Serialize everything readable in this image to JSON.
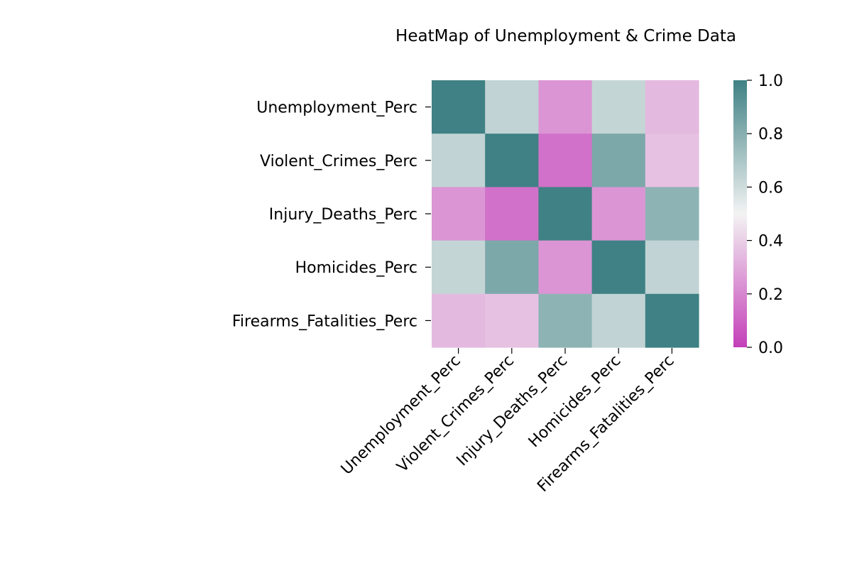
{
  "chart_data": {
    "type": "heatmap",
    "title": "HeatMap of Unemployment & Crime Data",
    "rows": [
      "Unemployment_Perc",
      "Violent_Crimes_Perc",
      "Injury_Deaths_Perc",
      "Homicides_Perc",
      "Firearms_Fatalities_Perc"
    ],
    "columns": [
      "Unemployment_Perc",
      "Violent_Crimes_Perc",
      "Injury_Deaths_Perc",
      "Homicides_Perc",
      "Firearms_Fatalities_Perc"
    ],
    "values": [
      [
        1.0,
        0.64,
        0.24,
        0.63,
        0.34
      ],
      [
        0.64,
        1.0,
        0.14,
        0.83,
        0.36
      ],
      [
        0.24,
        0.14,
        1.0,
        0.24,
        0.78
      ],
      [
        0.63,
        0.83,
        0.24,
        1.0,
        0.64
      ],
      [
        0.34,
        0.36,
        0.78,
        0.64,
        1.0
      ]
    ],
    "colorbar": {
      "range": [
        0.0,
        1.0
      ],
      "ticks": [
        "0.0",
        "0.2",
        "0.4",
        "0.6",
        "0.8",
        "1.0"
      ],
      "colors": {
        "low": "#c43fb8",
        "mid": "#f3f3f3",
        "high": "#3f8184"
      }
    }
  }
}
